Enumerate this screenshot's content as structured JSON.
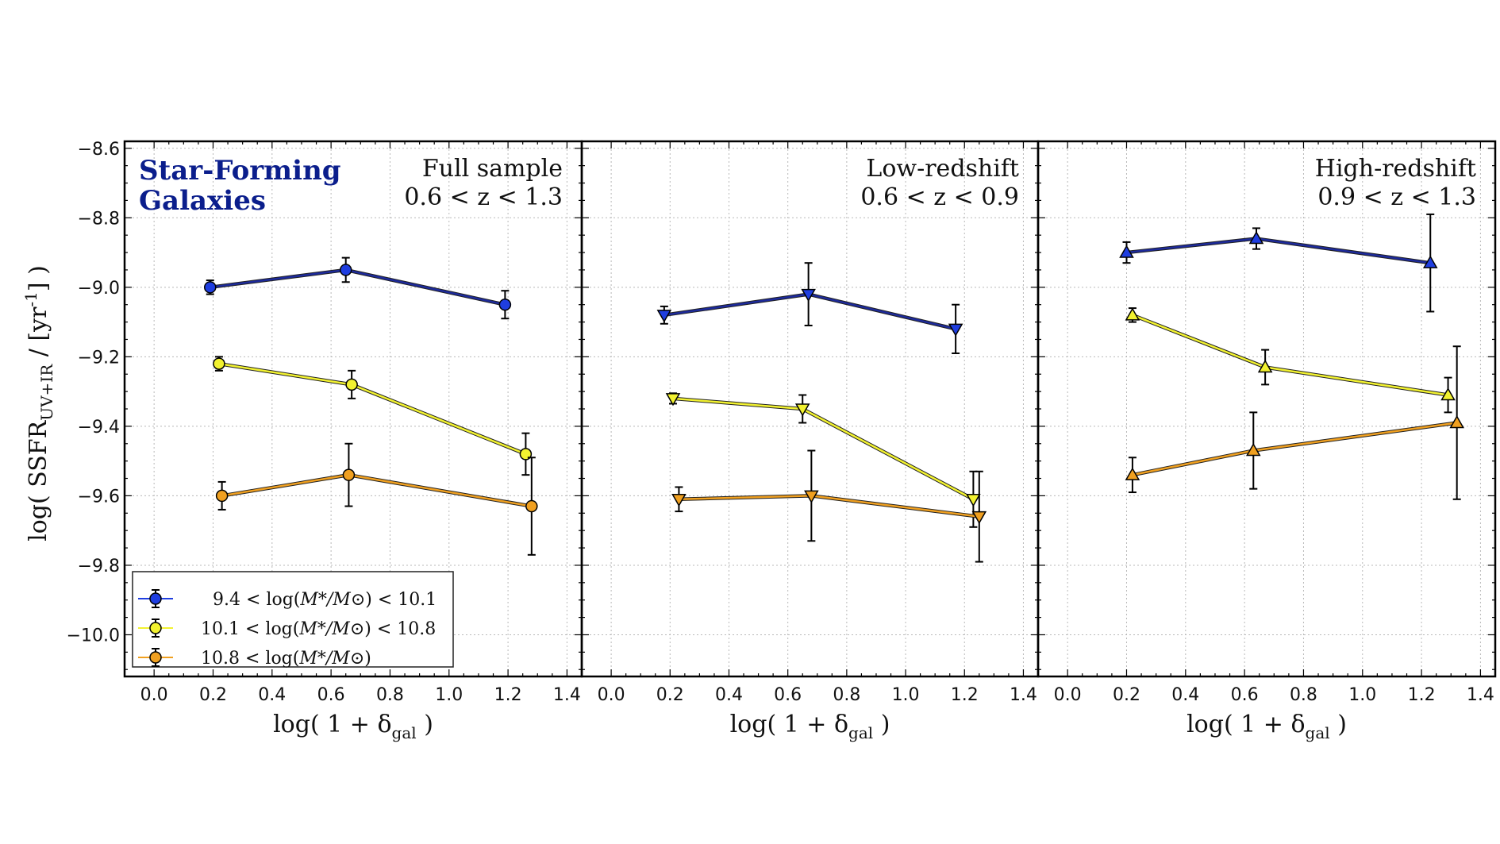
{
  "figure_label": {
    "line1": "Star-Forming",
    "line2": "Galaxies"
  },
  "y_axis": {
    "label_main": "log( SSFR",
    "label_sub": "UV+IR",
    "label_mid": " / [yr",
    "label_sup": "-1",
    "label_end": "] )"
  },
  "x_axis": {
    "label_main": "log( 1 + δ",
    "label_sub": "gal",
    "label_end": " )"
  },
  "legend": [
    {
      "text_pre": "9.4 < log(",
      "text_math": "M*/M⊙",
      "text_post": ") < 10.1"
    },
    {
      "text_pre": "10.1 < log(",
      "text_math": "M*/M⊙",
      "text_post": ") < 10.8"
    },
    {
      "text_pre": "10.8 < log(",
      "text_math": "M*/M⊙",
      "text_post": ")"
    }
  ],
  "chart_data": [
    {
      "type": "line",
      "title": "Full sample",
      "subtitle": "0.6 < z < 1.3",
      "xlabel": "log( 1 + δgal )",
      "ylabel": "log( SSFR UV+IR / [yr-1] )",
      "xlim": [
        -0.1,
        1.45
      ],
      "ylim": [
        -10.12,
        -8.58
      ],
      "xticks": [
        "0.0",
        "0.2",
        "0.4",
        "0.6",
        "0.8",
        "1.0",
        "1.2",
        "1.4"
      ],
      "yticks": [
        "−8.6",
        "−8.8",
        "−9.0",
        "−9.2",
        "−9.4",
        "−9.6",
        "−9.8",
        "−10.0"
      ],
      "grid": true,
      "marker": "circle",
      "series": [
        {
          "name": "9.4 < log(M*/M⊙) < 10.1",
          "color": "#1a2a8c",
          "fill": "#1f3ee0",
          "x": [
            0.19,
            0.65,
            1.19
          ],
          "y": [
            -9.0,
            -8.95,
            -9.05
          ],
          "yerr": [
            0.02,
            0.035,
            0.04
          ]
        },
        {
          "name": "10.1 < log(M*/M⊙) < 10.8",
          "color": "#9a9a30",
          "fill": "#f2f230",
          "x": [
            0.22,
            0.67,
            1.26
          ],
          "y": [
            -9.22,
            -9.28,
            -9.48
          ],
          "yerr": [
            0.02,
            0.04,
            0.06
          ]
        },
        {
          "name": "10.8 < log(M*/M⊙)",
          "color": "#b8702a",
          "fill": "#f0a020",
          "x": [
            0.23,
            0.66,
            1.28
          ],
          "y": [
            -9.6,
            -9.54,
            -9.63
          ],
          "yerr": [
            0.04,
            0.09,
            0.14
          ]
        }
      ]
    },
    {
      "type": "line",
      "title": "Low-redshift",
      "subtitle": "0.6 < z < 0.9",
      "xlabel": "log( 1 + δgal )",
      "xlim": [
        -0.1,
        1.45
      ],
      "ylim": [
        -10.12,
        -8.58
      ],
      "xticks": [
        "0.0",
        "0.2",
        "0.4",
        "0.6",
        "0.8",
        "1.0",
        "1.2",
        "1.4"
      ],
      "grid": true,
      "marker": "triangle-down",
      "series": [
        {
          "name": "9.4 < log(M*/M⊙) < 10.1",
          "color": "#1a2a8c",
          "fill": "#1f3ee0",
          "x": [
            0.18,
            0.67,
            1.17
          ],
          "y": [
            -9.08,
            -9.02,
            -9.12
          ],
          "yerr": [
            0.025,
            0.09,
            0.07
          ]
        },
        {
          "name": "10.1 < log(M*/M⊙) < 10.8",
          "color": "#9a9a30",
          "fill": "#f2f230",
          "x": [
            0.21,
            0.65,
            1.23
          ],
          "y": [
            -9.32,
            -9.35,
            -9.61
          ],
          "yerr": [
            0.015,
            0.04,
            0.08
          ]
        },
        {
          "name": "10.8 < log(M*/M⊙)",
          "color": "#b8702a",
          "fill": "#f0a020",
          "x": [
            0.23,
            0.68,
            1.25
          ],
          "y": [
            -9.61,
            -9.6,
            -9.66
          ],
          "yerr": [
            0.035,
            0.13,
            0.13
          ]
        }
      ]
    },
    {
      "type": "line",
      "title": "High-redshift",
      "subtitle": "0.9 < z < 1.3",
      "xlabel": "log( 1 + δgal )",
      "xlim": [
        -0.1,
        1.45
      ],
      "ylim": [
        -10.12,
        -8.58
      ],
      "xticks": [
        "0.0",
        "0.2",
        "0.4",
        "0.6",
        "0.8",
        "1.0",
        "1.2",
        "1.4"
      ],
      "grid": true,
      "marker": "triangle-up",
      "series": [
        {
          "name": "9.4 < log(M*/M⊙) < 10.1",
          "color": "#1a2a8c",
          "fill": "#1f3ee0",
          "x": [
            0.2,
            0.64,
            1.23
          ],
          "y": [
            -8.9,
            -8.86,
            -8.93
          ],
          "yerr": [
            0.03,
            0.03,
            0.14
          ]
        },
        {
          "name": "10.1 < log(M*/M⊙) < 10.8",
          "color": "#9a9a30",
          "fill": "#f2f230",
          "x": [
            0.22,
            0.67,
            1.29
          ],
          "y": [
            -9.08,
            -9.23,
            -9.31
          ],
          "yerr": [
            0.02,
            0.05,
            0.05
          ]
        },
        {
          "name": "10.8 < log(M*/M⊙)",
          "color": "#b8702a",
          "fill": "#f0a020",
          "x": [
            0.22,
            0.63,
            1.32
          ],
          "y": [
            -9.54,
            -9.47,
            -9.39
          ],
          "yerr": [
            0.05,
            0.11,
            0.22
          ]
        }
      ]
    }
  ]
}
